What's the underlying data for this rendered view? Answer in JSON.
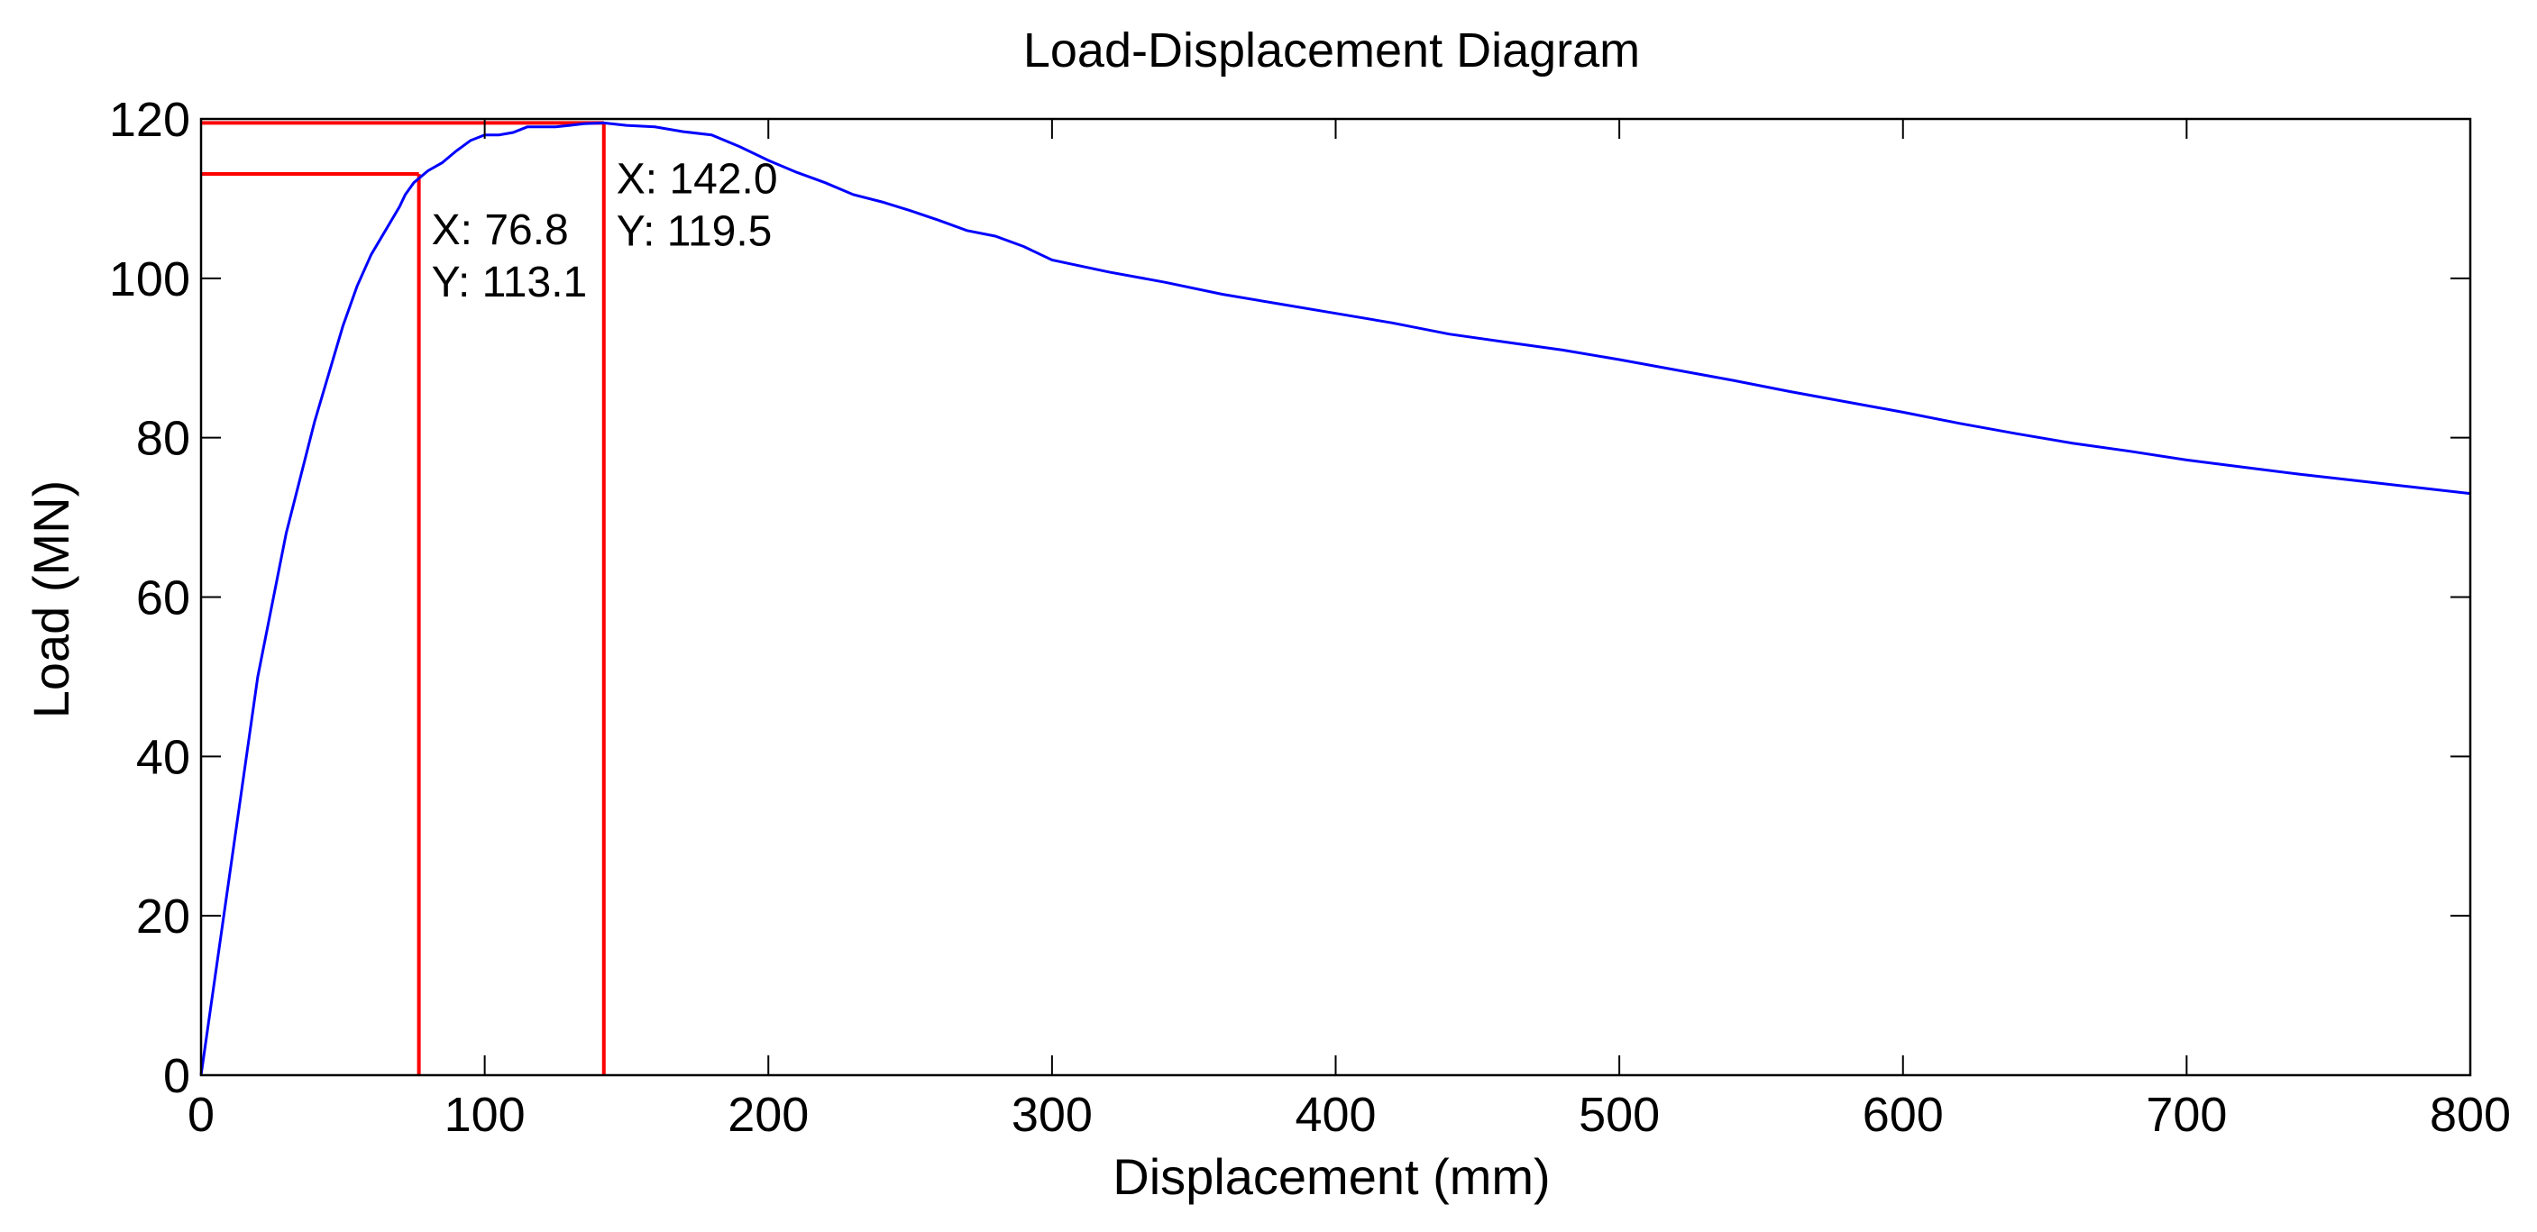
{
  "chart_data": {
    "type": "line",
    "title": "Load-Displacement Diagram",
    "xlabel": "Displacement (mm)",
    "ylabel": "Load (MN)",
    "xlim": [
      0,
      800
    ],
    "ylim": [
      0,
      120
    ],
    "xticks": [
      0,
      100,
      200,
      300,
      400,
      500,
      600,
      700,
      800
    ],
    "yticks": [
      0,
      20,
      40,
      60,
      80,
      100,
      120
    ],
    "grid": false,
    "colors": {
      "series": "#0000ff",
      "markers": "#ff0000"
    },
    "series": [
      {
        "x": [
          0,
          10,
          20,
          30,
          40,
          50,
          55,
          60,
          65,
          70,
          72,
          75,
          80,
          85,
          90,
          95,
          100,
          105,
          110,
          115,
          120,
          125,
          130,
          135,
          142,
          150,
          160,
          170,
          180,
          190,
          200,
          210,
          220,
          230,
          240,
          250,
          260,
          270,
          280,
          290,
          300,
          320,
          340,
          360,
          380,
          400,
          420,
          440,
          460,
          480,
          500,
          520,
          540,
          560,
          580,
          600,
          620,
          640,
          660,
          680,
          700,
          720,
          740,
          760,
          780,
          800
        ],
        "y": [
          0,
          25,
          50,
          68,
          82,
          94,
          99,
          103,
          106,
          109,
          110.5,
          112,
          113.5,
          114.5,
          116,
          117.3,
          118,
          118,
          118.3,
          119,
          119,
          119,
          119.2,
          119.4,
          119.5,
          119.2,
          119,
          118.4,
          118,
          116.5,
          114.8,
          113.3,
          112,
          110.5,
          109.6,
          108.5,
          107.3,
          106,
          105.3,
          104,
          102.3,
          100.8,
          99.5,
          98,
          96.8,
          95.6,
          94.4,
          93,
          92,
          91,
          89.8,
          88.5,
          87.2,
          85.8,
          84.5,
          83.2,
          81.8,
          80.5,
          79.3,
          78.3,
          77.2,
          76.3,
          75.4,
          74.6,
          73.8,
          73
        ]
      }
    ],
    "annotations": [
      {
        "x": 76.8,
        "y": 113.1,
        "label_x": "X: 76.8",
        "label_y": "Y: 113.1"
      },
      {
        "x": 142.0,
        "y": 119.5,
        "label_x": "X: 142.0",
        "label_y": "Y: 119.5"
      }
    ]
  }
}
